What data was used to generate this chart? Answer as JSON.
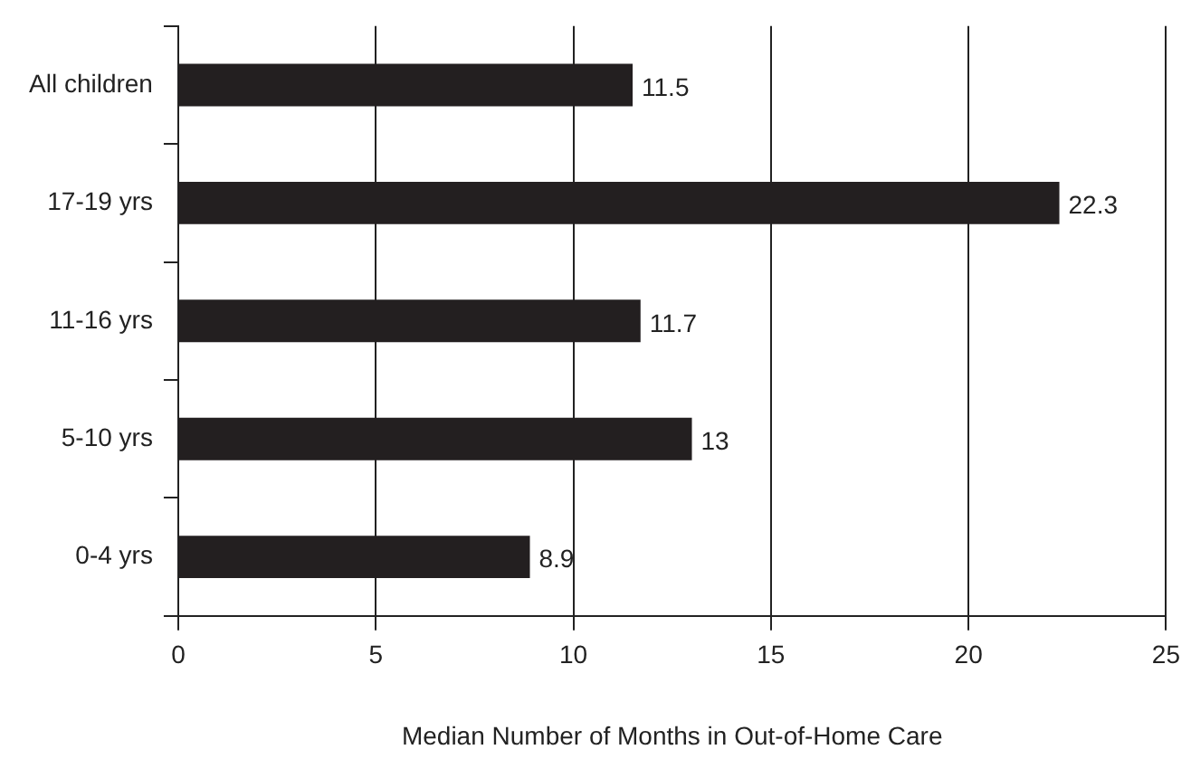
{
  "chart_data": {
    "type": "bar",
    "orientation": "horizontal",
    "xlabel": "Median Number of Months in Out-of-Home Care",
    "categories": [
      "All children",
      "17-19 yrs",
      "11-16 yrs",
      "5-10 yrs",
      "0-4 yrs"
    ],
    "values": [
      11.5,
      22.3,
      11.7,
      13,
      8.9
    ],
    "color": "#231f20",
    "xlim": [
      0,
      25
    ],
    "xticks": [
      0,
      5,
      10,
      15,
      20,
      25
    ],
    "grid": "x",
    "data_labels": true
  }
}
